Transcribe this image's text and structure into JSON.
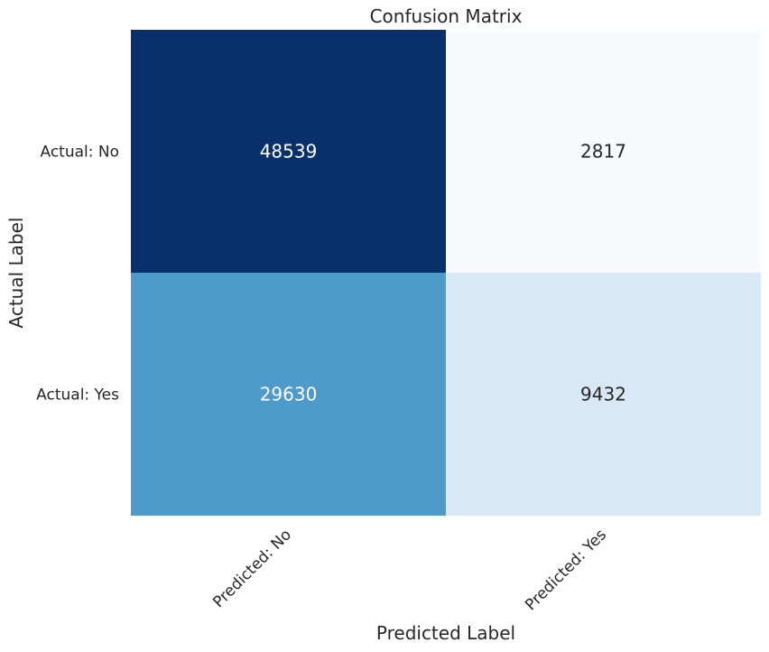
{
  "chart_data": {
    "type": "heatmap",
    "title": "Confusion Matrix",
    "xlabel": "Predicted Label",
    "ylabel": "Actual Label",
    "x_categories": [
      "Predicted: No",
      "Predicted: Yes"
    ],
    "y_categories": [
      "Actual: No",
      "Actual: Yes"
    ],
    "values": [
      [
        48539,
        2817
      ],
      [
        29630,
        9432
      ]
    ],
    "cell_colors": [
      [
        "#08306b",
        "#f7fbff"
      ],
      [
        "#4e9bcb",
        "#dae8f5"
      ]
    ],
    "cell_text_colors": [
      [
        "#ffffff",
        "#262626"
      ],
      [
        "#ffffff",
        "#262626"
      ]
    ],
    "colormap": "Blues",
    "grid": false,
    "colorbar": false
  }
}
